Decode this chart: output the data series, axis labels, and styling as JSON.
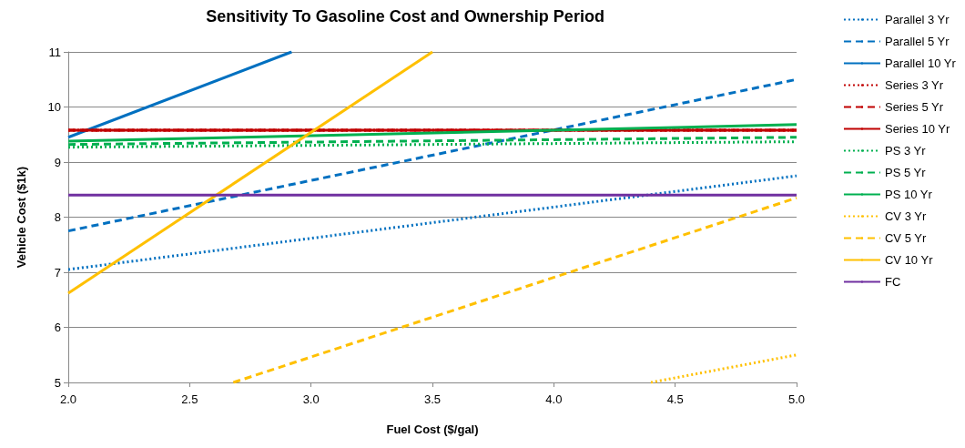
{
  "chart_data": {
    "type": "line",
    "title": "Sensitivity To Gasoline Cost and Ownership Period",
    "xlabel": "Fuel Cost ($/gal)",
    "ylabel": "Vehicle Cost ($1k)",
    "xlim": [
      2,
      5
    ],
    "xticks": [
      {
        "value": 2,
        "label": "2.0"
      },
      {
        "value": 2.5,
        "label": "2.5"
      },
      {
        "value": 3,
        "label": "3.0"
      },
      {
        "value": 3.5,
        "label": "3.5"
      },
      {
        "value": 4,
        "label": "4.0"
      },
      {
        "value": 4.5,
        "label": "4.5"
      },
      {
        "value": 5,
        "label": "5.0"
      }
    ],
    "ylim": [
      5,
      11
    ],
    "yticks": [
      5,
      6,
      7,
      8,
      9,
      10,
      11
    ],
    "grid": "y",
    "legend": "right",
    "marker": "none",
    "series": [
      {
        "name": "Parallel 3 Yr",
        "color": "#0070c0",
        "line_style": "dotted",
        "x": [
          2,
          5
        ],
        "values": [
          7.05,
          8.75
        ]
      },
      {
        "name": "Parallel 5 Yr",
        "color": "#0070c0",
        "line_style": "dashed",
        "x": [
          2,
          5
        ],
        "values": [
          7.75,
          10.5
        ]
      },
      {
        "name": "Parallel 10 Yr",
        "color": "#0070c0",
        "line_style": "solid",
        "x": [
          2,
          2.92
        ],
        "values": [
          9.45,
          11
        ]
      },
      {
        "name": "Series 3 Yr",
        "color": "#c00000",
        "line_style": "dotted",
        "x": [
          2,
          5
        ],
        "values": [
          9.58,
          9.58
        ]
      },
      {
        "name": "Series 5 Yr",
        "color": "#c00000",
        "line_style": "dashed",
        "x": [
          2,
          5
        ],
        "values": [
          9.58,
          9.58
        ]
      },
      {
        "name": "Series 10 Yr",
        "color": "#c00000",
        "line_style": "solid",
        "x": [
          2,
          5
        ],
        "values": [
          9.58,
          9.58
        ]
      },
      {
        "name": "PS 3 Yr",
        "color": "#00b050",
        "line_style": "dotted",
        "x": [
          2,
          5
        ],
        "values": [
          9.27,
          9.37
        ]
      },
      {
        "name": "PS 5 Yr",
        "color": "#00b050",
        "line_style": "dashed",
        "x": [
          2,
          5
        ],
        "values": [
          9.32,
          9.45
        ]
      },
      {
        "name": "PS 10 Yr",
        "color": "#00b050",
        "line_style": "solid",
        "x": [
          2,
          5
        ],
        "values": [
          9.38,
          9.68
        ]
      },
      {
        "name": "CV 3 Yr",
        "color": "#ffc000",
        "line_style": "dotted",
        "x": [
          4.4,
          5
        ],
        "values": [
          5,
          5.5
        ]
      },
      {
        "name": "CV 5 Yr",
        "color": "#ffc000",
        "line_style": "dashed",
        "x": [
          2.68,
          5
        ],
        "values": [
          5,
          8.35
        ]
      },
      {
        "name": "CV 10 Yr",
        "color": "#ffc000",
        "line_style": "solid",
        "x": [
          2,
          3.5
        ],
        "values": [
          6.62,
          11
        ]
      },
      {
        "name": "FC",
        "color": "#7030a0",
        "line_style": "solid",
        "x": [
          2,
          5
        ],
        "values": [
          8.4,
          8.4
        ]
      }
    ]
  }
}
